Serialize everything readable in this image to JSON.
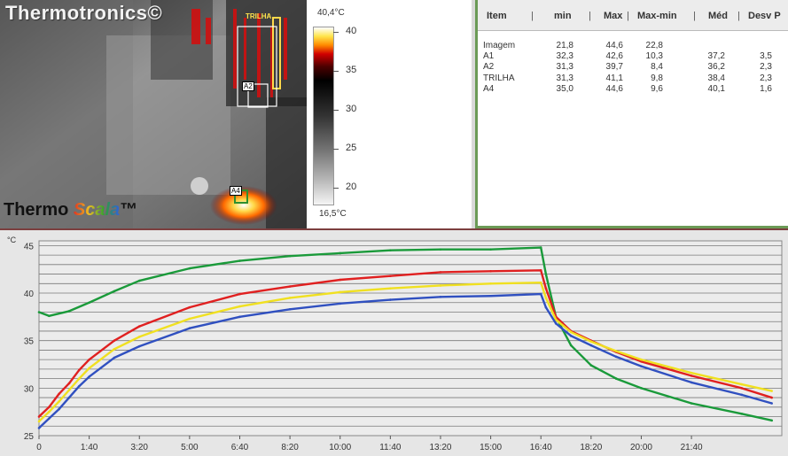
{
  "thermal": {
    "brand": "Thermotronics©",
    "footer_brand_1": "Thermo",
    "footer_brand_2": "Scala",
    "footer_brand_tm": "™",
    "rois": {
      "trilha": "TRILHA",
      "a2": "A2",
      "a4": "A4"
    }
  },
  "scale": {
    "max_label": "40,4°C",
    "min_label": "16,5°C",
    "ticks": [
      "40",
      "35",
      "30",
      "25",
      "20"
    ]
  },
  "table": {
    "columns": [
      "Item",
      "min",
      "Max",
      "Max-min",
      "Méd",
      "Desv P"
    ],
    "separators": [
      "|",
      "|",
      "|",
      "|",
      "|"
    ],
    "rows": [
      [
        "Imagem",
        "21,8",
        "44,6",
        "22,8",
        "",
        ""
      ],
      [
        "A1",
        "32,3",
        "42,6",
        "10,3",
        "37,2",
        "3,5"
      ],
      [
        "A2",
        "31,3",
        "39,7",
        "8,4",
        "36,2",
        "2,3"
      ],
      [
        "TRILHA",
        "31,3",
        "41,1",
        "9,8",
        "38,4",
        "2,3"
      ],
      [
        "A4",
        "35,0",
        "44,6",
        "9,6",
        "40,1",
        "1,6"
      ]
    ]
  },
  "chart_data": {
    "type": "line",
    "ylabel": "°C",
    "ylim": [
      25,
      45.5
    ],
    "xlim": [
      0,
      1480
    ],
    "x_ticks": [
      "0",
      "1:40",
      "3:20",
      "5:00",
      "6:40",
      "8:20",
      "10:00",
      "11:40",
      "13:20",
      "15:00",
      "16:40",
      "18:20",
      "20:00",
      "21:40"
    ],
    "y_ticks": [
      "25",
      "30",
      "35",
      "40",
      "45"
    ],
    "grid": true,
    "colors": {
      "green": "#1a9a3a",
      "red": "#e02020",
      "yellow": "#f0e020",
      "blue": "#3050c0"
    },
    "series": [
      {
        "color": "green",
        "x": [
          0,
          20,
          60,
          100,
          150,
          200,
          300,
          400,
          500,
          600,
          700,
          800,
          900,
          1000,
          1010,
          1030,
          1060,
          1100,
          1150,
          1200,
          1300,
          1400,
          1460
        ],
        "y": [
          38.0,
          37.6,
          38.1,
          39.0,
          40.2,
          41.3,
          42.6,
          43.4,
          43.9,
          44.2,
          44.5,
          44.6,
          44.6,
          44.8,
          42.0,
          37.5,
          34.5,
          32.4,
          31.0,
          30.0,
          28.4,
          27.3,
          26.6
        ]
      },
      {
        "color": "red",
        "x": [
          0,
          20,
          40,
          60,
          80,
          100,
          150,
          200,
          300,
          400,
          500,
          600,
          700,
          800,
          900,
          1000,
          1010,
          1030,
          1060,
          1100,
          1150,
          1200,
          1300,
          1400,
          1460
        ],
        "y": [
          27.0,
          28.0,
          29.4,
          30.5,
          31.9,
          33.0,
          35.0,
          36.5,
          38.5,
          39.9,
          40.7,
          41.4,
          41.8,
          42.2,
          42.3,
          42.4,
          40.5,
          37.5,
          36.0,
          35.0,
          33.8,
          32.8,
          31.3,
          30.0,
          29.0
        ]
      },
      {
        "color": "yellow",
        "x": [
          0,
          20,
          40,
          60,
          80,
          100,
          150,
          200,
          300,
          400,
          500,
          600,
          700,
          800,
          900,
          1000,
          1010,
          1030,
          1060,
          1100,
          1150,
          1200,
          1300,
          1400,
          1460
        ],
        "y": [
          26.5,
          27.5,
          28.6,
          29.8,
          31.0,
          32.1,
          34.1,
          35.4,
          37.3,
          38.6,
          39.5,
          40.1,
          40.5,
          40.8,
          41.0,
          41.1,
          39.5,
          37.2,
          35.9,
          34.9,
          33.9,
          33.0,
          31.6,
          30.4,
          29.7
        ]
      },
      {
        "color": "blue",
        "x": [
          0,
          20,
          40,
          60,
          80,
          100,
          150,
          200,
          300,
          400,
          500,
          600,
          700,
          800,
          900,
          1000,
          1010,
          1030,
          1060,
          1100,
          1150,
          1200,
          1300,
          1400,
          1460
        ],
        "y": [
          25.8,
          26.8,
          27.8,
          29.0,
          30.2,
          31.2,
          33.2,
          34.4,
          36.3,
          37.5,
          38.3,
          38.9,
          39.3,
          39.6,
          39.7,
          39.9,
          38.5,
          36.8,
          35.5,
          34.5,
          33.3,
          32.3,
          30.6,
          29.3,
          28.4
        ]
      }
    ]
  }
}
